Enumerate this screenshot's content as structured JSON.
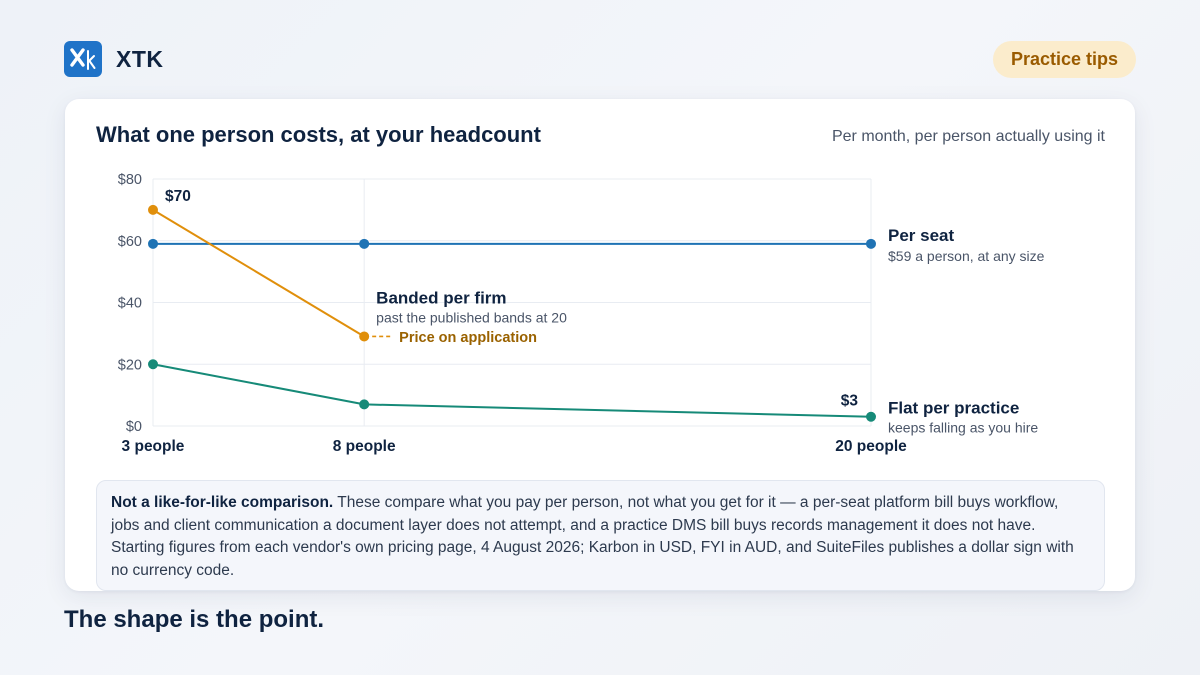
{
  "brand": {
    "name": "XTK",
    "logo_icon": "xtk-logo-icon",
    "logo_color": "#1f73c8"
  },
  "header": {
    "tag_label": "Practice tips"
  },
  "footer": {
    "text": "The shape is the point."
  },
  "note": {
    "lead": "Not a like-for-like comparison.",
    "body": " These compare what you pay per person, not what you get for it — a per-seat platform bill buys workflow, jobs and client communication a document layer does not attempt, and a practice DMS bill buys records management it does not have. Starting figures from each vendor's own pricing page, 4 August 2026; Karbon in USD, FYI in AUD, and SuiteFiles publishes a dollar sign with no currency code."
  },
  "chart_data": {
    "type": "line",
    "title": "What one person costs, at your headcount",
    "subtitle": "Per month, per person actually using it",
    "categories": [
      "3 people",
      "8 people",
      "20 people"
    ],
    "x": [
      3,
      8,
      20
    ],
    "ylim": [
      0,
      80
    ],
    "yticks": [
      0,
      20,
      40,
      60,
      80
    ],
    "ytick_labels": [
      "$0",
      "$20",
      "$40",
      "$60",
      "$80"
    ],
    "grid": true,
    "series": [
      {
        "name": "Per seat",
        "desc": "$59 a person, at any size",
        "color": "#1f73b4",
        "x": [
          3,
          8,
          20
        ],
        "values": [
          59,
          59,
          59
        ]
      },
      {
        "name": "Banded per firm",
        "desc": "past the published bands at 20",
        "color": "#e08f0b",
        "x": [
          3,
          8
        ],
        "values": [
          70,
          29
        ],
        "start_label": "$70",
        "extension_label": "Price on application"
      },
      {
        "name": "Flat per practice",
        "desc": "keeps falling as you hire",
        "color": "#168a78",
        "x": [
          3,
          8,
          20
        ],
        "values": [
          20,
          7,
          3
        ],
        "end_label": "$3"
      }
    ],
    "colors": {
      "text": "#0f2340",
      "muted": "#4a5568",
      "grid": "#e8ecf2",
      "extension": "#9a6200"
    }
  }
}
